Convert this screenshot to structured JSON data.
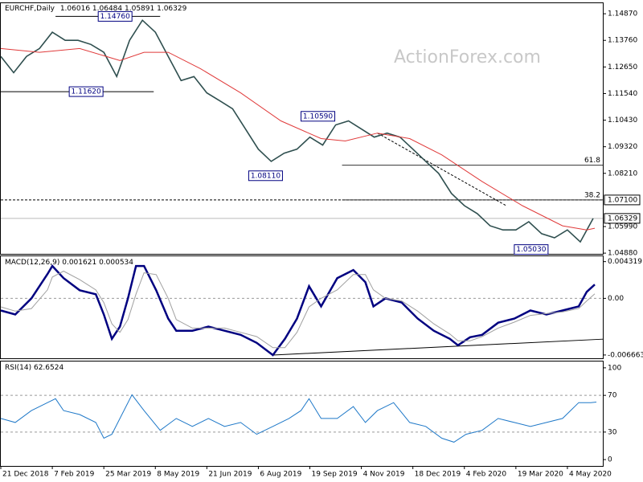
{
  "chart_data": [
    {
      "type": "line",
      "title": "EURCHF,Daily",
      "ohlc": [
        1.06016,
        1.06484,
        1.05891,
        1.06329
      ],
      "watermark": "ActionForex.com",
      "xlim": [
        0,
        374
      ],
      "ylim": [
        1.0485,
        1.1531
      ],
      "yticks": [
        {
          "value": 1.1487,
          "label": "1.14870"
        },
        {
          "value": 1.1376,
          "label": "1.13760"
        },
        {
          "value": 1.1265,
          "label": "1.12650"
        },
        {
          "value": 1.1154,
          "label": "1.11540"
        },
        {
          "value": 1.1043,
          "label": "1.10430"
        },
        {
          "value": 1.0932,
          "label": "1.09320"
        },
        {
          "value": 1.0821,
          "label": "1.08210"
        },
        {
          "value": 1.0599,
          "label": "1.05990"
        },
        {
          "value": 1.0488,
          "label": "1.04880"
        }
      ],
      "series": [
        {
          "color": "#2f4f4f",
          "x": [
            0,
            8,
            16,
            24,
            32,
            40,
            48,
            56,
            64,
            72,
            80,
            88,
            96,
            104,
            112,
            120,
            128,
            136,
            144,
            152,
            160,
            168,
            176,
            184,
            192,
            200,
            208,
            216,
            224,
            232,
            240,
            248,
            256,
            264,
            272,
            280,
            288,
            296,
            304,
            312,
            320,
            328,
            336,
            344,
            352,
            360,
            368
          ],
          "values": [
            1.1309,
            1.1241,
            1.1309,
            1.1342,
            1.141,
            1.1376,
            1.1376,
            1.1359,
            1.1326,
            1.1225,
            1.1376,
            1.146,
            1.141,
            1.1309,
            1.1208,
            1.1225,
            1.1157,
            1.1124,
            1.109,
            1.1006,
            1.0922,
            1.0871,
            1.0905,
            1.0922,
            1.0972,
            1.0939,
            1.1023,
            1.104,
            1.1006,
            1.0972,
            1.0989,
            1.0972,
            1.0922,
            1.0871,
            1.0821,
            1.0737,
            1.0686,
            1.0653,
            1.0602,
            1.0585,
            1.0585,
            1.0619,
            1.0569,
            1.0552,
            1.0585,
            1.0535,
            1.0633
          ]
        },
        {
          "color": "#e03a3a",
          "x": [
            0,
            24,
            49,
            74,
            89,
            104,
            124,
            149,
            174,
            199,
            214,
            234,
            254,
            274,
            299,
            324,
            349,
            364,
            369
          ],
          "values": [
            1.1342,
            1.1326,
            1.1342,
            1.1292,
            1.1326,
            1.1326,
            1.1258,
            1.1157,
            1.104,
            1.0966,
            1.0956,
            1.0989,
            1.0966,
            1.0898,
            1.0787,
            1.0686,
            1.0602,
            1.0585,
            1.0592
          ]
        }
      ],
      "last_price": 1.06329,
      "annotations": [
        {
          "label": "1.14760",
          "value": 1.1476,
          "x": 71
        },
        {
          "label": "1.11620",
          "value": 1.1162,
          "x": 53
        },
        {
          "label": "1.10590",
          "value": 1.1059,
          "x": 197
        },
        {
          "label": "1.08110",
          "value": 1.0811,
          "x": 164.5
        },
        {
          "label": "1.05030",
          "value": 1.0503,
          "x": 329.5
        }
      ],
      "levels": [
        {
          "value": 1.1162,
          "x": [
            0,
            95
          ]
        },
        {
          "value": 1.1476,
          "x": [
            34,
            99
          ]
        }
      ],
      "fibonacci": [
        {
          "label": "61.8",
          "value": 1.0855,
          "x": 212
        },
        {
          "label": "38.2",
          "value": 1.071,
          "x": 212,
          "price_label": "1.07100"
        }
      ],
      "trendlines": [
        {
          "x": [
            234,
            314
          ],
          "y": [
            1.0989,
            1.0686
          ]
        }
      ]
    },
    {
      "type": "line",
      "title": "MACD(12,26,9)",
      "readings": [
        0.001621,
        0.000534
      ],
      "xlim": [
        0,
        374
      ],
      "ylim": [
        -0.00705,
        0.00495
      ],
      "yticks": [
        0.004319,
        {
          "value": 0,
          "label": "0.00"
        },
        -0.006663
      ],
      "dashed_levels": [
        0
      ],
      "x": [
        0,
        9,
        19,
        29,
        32,
        39,
        49,
        59,
        64,
        69,
        74,
        79,
        84,
        89,
        96.5,
        104,
        109,
        119,
        129,
        139,
        149,
        159,
        169,
        176.5,
        184,
        191.5,
        199,
        209,
        219,
        226.5,
        231.5,
        239,
        249,
        259,
        269,
        279,
        284,
        291.5,
        299,
        309,
        319,
        329,
        339,
        349,
        359,
        364,
        369
      ],
      "series": [
        {
          "color": "#000080",
          "values": [
            -0.00143,
            -0.0019,
            0,
            0.00286,
            0.00381,
            0.00238,
            0.00095,
            0.00048,
            -0.0019,
            -0.00476,
            -0.00333,
            0,
            0.00381,
            0.00381,
            0.00095,
            -0.00238,
            -0.00381,
            -0.00381,
            -0.00333,
            -0.00381,
            -0.00429,
            -0.00524,
            -0.00667,
            -0.00476,
            -0.00238,
            0.00143,
            -0.00095,
            0.00238,
            0.00333,
            0.0019,
            -0.00095,
            0,
            -0.00048,
            -0.00238,
            -0.00381,
            -0.00476,
            -0.00552,
            -0.00457,
            -0.00429,
            -0.00286,
            -0.00238,
            -0.00143,
            -0.0019,
            -0.00143,
            -0.00095,
            0.00076,
            0.00162
          ]
        },
        {
          "color": "#a0a0a0",
          "values": [
            -0.001,
            -0.0015,
            -0.0012,
            0.001,
            0.0025,
            0.0032,
            0.0022,
            0.001,
            -0.0005,
            -0.003,
            -0.004,
            -0.0025,
            0.0005,
            0.003,
            0.0028,
            0,
            -0.0025,
            -0.0035,
            -0.0035,
            -0.0035,
            -0.004,
            -0.0045,
            -0.0058,
            -0.0058,
            -0.004,
            -0.001,
            0,
            0.001,
            0.0028,
            0.0028,
            0.001,
            0,
            -0.0003,
            -0.0015,
            -0.003,
            -0.0042,
            -0.005,
            -0.005,
            -0.0045,
            -0.0035,
            -0.0028,
            -0.002,
            -0.0018,
            -0.0016,
            -0.0012,
            -0.0003,
            0.00053
          ]
        }
      ],
      "trendlines": [
        {
          "x": [
            169,
            374
          ],
          "y": [
            -0.00667,
            -0.0048
          ]
        }
      ]
    },
    {
      "type": "line",
      "title": "RSI(14)",
      "readings": [
        62.6524
      ],
      "xlim": [
        0,
        374
      ],
      "ylim": [
        -6.9,
        106.9
      ],
      "yticks": [
        100,
        70,
        30,
        0
      ],
      "dashed_levels": [
        70,
        30
      ],
      "xticks": [
        {
          "value": 0,
          "label": "21 Dec 2018"
        },
        {
          "value": 32,
          "label": "7 Feb 2019"
        },
        {
          "value": 64,
          "label": "25 Mar 2019"
        },
        {
          "value": 96,
          "label": "8 May 2019"
        },
        {
          "value": 128,
          "label": "21 Jun 2019"
        },
        {
          "value": 160,
          "label": "6 Aug 2019"
        },
        {
          "value": 192,
          "label": "19 Sep 2019"
        },
        {
          "value": 224,
          "label": "4 Nov 2019"
        },
        {
          "value": 256,
          "label": "18 Dec 2019"
        },
        {
          "value": 288,
          "label": "4 Feb 2020"
        },
        {
          "value": 320,
          "label": "19 Mar 2020"
        },
        {
          "value": 352,
          "label": "4 May 2020"
        }
      ],
      "x": [
        0,
        9,
        19,
        29,
        34,
        39,
        49,
        59,
        64,
        69,
        74,
        81.5,
        89,
        99,
        109,
        119,
        129,
        139,
        149,
        159,
        169,
        179,
        186.5,
        191.5,
        199,
        209,
        219,
        226.5,
        234,
        244,
        254,
        264,
        274,
        281.5,
        289,
        299,
        309,
        319,
        329,
        339,
        349,
        359,
        366.5,
        370
      ],
      "series": [
        {
          "color": "#1e78c8",
          "values": [
            44.8,
            40.5,
            53.4,
            62.1,
            66.4,
            53.4,
            49.1,
            40.5,
            23.3,
            27.6,
            44.8,
            70.7,
            53.4,
            31.9,
            44.8,
            36.2,
            44.8,
            36.2,
            40.5,
            27.6,
            36.2,
            44.8,
            53.4,
            66.4,
            44.8,
            44.8,
            57.8,
            40.5,
            53.4,
            62.1,
            40.5,
            36.2,
            23.3,
            19,
            27.6,
            31.9,
            44.8,
            40.5,
            36.2,
            40.5,
            44.8,
            62.1,
            62.1,
            62.65
          ]
        }
      ]
    }
  ]
}
